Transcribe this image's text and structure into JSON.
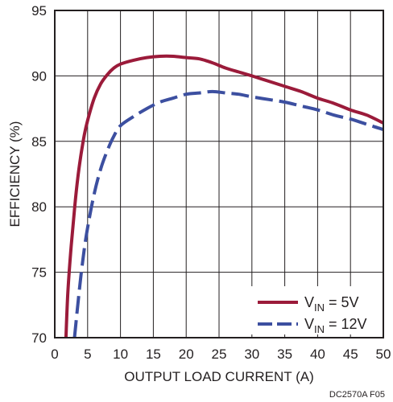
{
  "chart_data": {
    "type": "line",
    "xlabel": "OUTPUT LOAD CURRENT (A)",
    "ylabel": "EFFICIENCY (%)",
    "xlim": [
      0,
      50
    ],
    "ylim": [
      70,
      95
    ],
    "xticks": [
      0,
      5,
      10,
      15,
      20,
      25,
      30,
      35,
      40,
      45,
      50
    ],
    "yticks": [
      70,
      75,
      80,
      85,
      90,
      95
    ],
    "grid": true,
    "legend_position": "bottom-right",
    "footnote": "DC2570A F05",
    "series": [
      {
        "name": "5V",
        "legend_prefix": "V",
        "legend_subscript": "IN",
        "legend_suffix": " = ",
        "color": "#9b1b3a",
        "dash": "solid",
        "x": [
          1.7,
          2.0,
          2.5,
          3.0,
          3.5,
          4.0,
          4.5,
          5.0,
          6.0,
          7.0,
          8.0,
          9.0,
          10.0,
          12.0,
          14.0,
          16.0,
          18.0,
          20.0,
          22.0,
          24.0,
          26.0,
          28.0,
          30.0,
          32.5,
          35.0,
          37.5,
          40.0,
          42.5,
          45.0,
          47.5,
          50.0
        ],
        "y": [
          70.0,
          73.5,
          77.0,
          79.8,
          82.2,
          84.0,
          85.5,
          86.6,
          88.3,
          89.4,
          90.1,
          90.6,
          90.9,
          91.2,
          91.4,
          91.5,
          91.5,
          91.4,
          91.3,
          91.0,
          90.6,
          90.3,
          90.0,
          89.6,
          89.2,
          88.8,
          88.3,
          87.9,
          87.4,
          87.0,
          86.4
        ]
      },
      {
        "name": "12V",
        "legend_prefix": "V",
        "legend_subscript": "IN",
        "legend_suffix": " = ",
        "color": "#3c4fa0",
        "dash": "long-dash",
        "x": [
          3.0,
          3.5,
          4.0,
          4.5,
          5.0,
          6.0,
          7.0,
          8.0,
          9.0,
          10.0,
          12.0,
          14.0,
          16.0,
          18.0,
          20.0,
          22.0,
          24.0,
          26.0,
          28.0,
          30.0,
          32.5,
          35.0,
          37.5,
          40.0,
          42.5,
          45.0,
          47.5,
          50.0
        ],
        "y": [
          70.0,
          72.5,
          74.8,
          76.8,
          78.4,
          81.0,
          82.9,
          84.3,
          85.4,
          86.2,
          86.9,
          87.5,
          88.0,
          88.3,
          88.6,
          88.7,
          88.8,
          88.7,
          88.6,
          88.4,
          88.2,
          88.0,
          87.7,
          87.4,
          87.0,
          86.7,
          86.3,
          85.9
        ]
      }
    ]
  }
}
